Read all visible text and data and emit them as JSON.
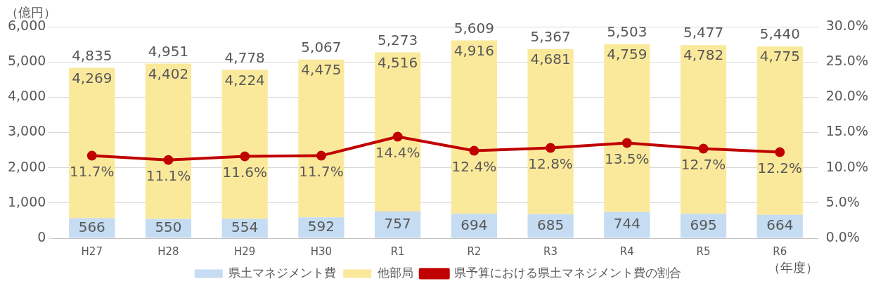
{
  "chart_data": {
    "type": "bar",
    "stacked": true,
    "ylabel": "（億円）",
    "xlabel": "（年度）",
    "categories": [
      "H27",
      "H28",
      "H29",
      "H30",
      "R1",
      "R2",
      "R3",
      "R4",
      "R5",
      "R6"
    ],
    "series": [
      {
        "name": "県土マネジメント費",
        "color": "#c5dcf2",
        "value_labels": [
          "566",
          "550",
          "554",
          "592",
          "757",
          "694",
          "685",
          "744",
          "695",
          "664"
        ],
        "values": [
          566,
          550,
          554,
          592,
          757,
          694,
          685,
          744,
          695,
          664
        ]
      },
      {
        "name": "他部局",
        "color": "#fbe99b",
        "value_labels": [
          "4,269",
          "4,402",
          "4,224",
          "4,475",
          "4,516",
          "4,916",
          "4,681",
          "4,759",
          "4,782",
          "4,775"
        ],
        "values": [
          4269,
          4402,
          4224,
          4475,
          4516,
          4916,
          4681,
          4759,
          4782,
          4775
        ]
      },
      {
        "name": "県予算における県土マネジメント費の割合",
        "type": "line",
        "axis": "y2",
        "color": "#c00000",
        "marker": "circle",
        "value_labels": [
          "11.7%",
          "11.1%",
          "11.6%",
          "11.7%",
          "14.4%",
          "12.4%",
          "12.8%",
          "13.5%",
          "12.7%",
          "12.2%"
        ],
        "values": [
          11.7,
          11.1,
          11.6,
          11.7,
          14.4,
          12.4,
          12.8,
          13.5,
          12.7,
          12.2
        ]
      }
    ],
    "totals": [
      "4,835",
      "4,951",
      "4,778",
      "5,067",
      "5,273",
      "5,609",
      "5,367",
      "5,503",
      "5,477",
      "5,440"
    ],
    "ylim": [
      0,
      6000
    ],
    "yticks": [
      {
        "value": 0,
        "label": "0"
      },
      {
        "value": 1000,
        "label": "1,000"
      },
      {
        "value": 2000,
        "label": "2,000"
      },
      {
        "value": 3000,
        "label": "3,000"
      },
      {
        "value": 4000,
        "label": "4,000"
      },
      {
        "value": 5000,
        "label": "5,000"
      },
      {
        "value": 6000,
        "label": "6,000"
      }
    ],
    "y2lim": [
      0,
      30
    ],
    "y2ticks": [
      {
        "value": 0,
        "label": "0.0%"
      },
      {
        "value": 5,
        "label": "5.0%"
      },
      {
        "value": 10,
        "label": "10.0%"
      },
      {
        "value": 15,
        "label": "15.0%"
      },
      {
        "value": 20,
        "label": "20.0%"
      },
      {
        "value": 25,
        "label": "25.0%"
      },
      {
        "value": 30,
        "label": "30.0%"
      }
    ],
    "grid": "y",
    "legend": "bottom"
  }
}
